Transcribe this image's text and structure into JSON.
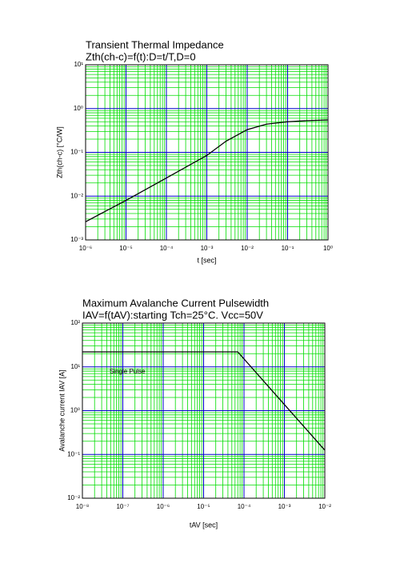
{
  "chart_data": [
    {
      "type": "line",
      "title": "Transient Thermal Impedance",
      "subtitle": "Zth(ch-c)=f(t):D=t/T,D=0",
      "x_label": "t [sec]",
      "y_label": "Zth(ch-c) [°C/W]",
      "log_x": true,
      "log_y": true,
      "grid": true,
      "minor_grid_color": "#00dd00",
      "major_grid_color": "#0000cc",
      "xlim": [
        1e-06,
        1
      ],
      "ylim": [
        0.001,
        10
      ],
      "xticks": [
        {
          "value": 1e-06,
          "label": "10⁻⁶"
        },
        {
          "value": 1e-05,
          "label": "10⁻⁵"
        },
        {
          "value": 0.0001,
          "label": "10⁻⁴"
        },
        {
          "value": 0.001,
          "label": "10⁻³"
        },
        {
          "value": 0.01,
          "label": "10⁻²"
        },
        {
          "value": 0.1,
          "label": "10⁻¹"
        },
        {
          "value": 1,
          "label": "10⁰"
        }
      ],
      "yticks": [
        {
          "value": 0.001,
          "label": "10⁻³"
        },
        {
          "value": 0.01,
          "label": "10⁻²"
        },
        {
          "value": 0.1,
          "label": "10⁻¹"
        },
        {
          "value": 1,
          "label": "10⁰"
        },
        {
          "value": 10,
          "label": "10¹"
        }
      ],
      "series": [
        {
          "color": "#000000",
          "x": [
            1e-06,
            1e-05,
            0.0001,
            0.001,
            0.003,
            0.01,
            0.03,
            0.1,
            0.3,
            1
          ],
          "values": [
            0.0026,
            0.008,
            0.026,
            0.085,
            0.18,
            0.33,
            0.44,
            0.5,
            0.53,
            0.55
          ]
        }
      ]
    },
    {
      "type": "line",
      "title": "Maximum Avalanche Current Pulsewidth",
      "subtitle": "IAV=f(tAV):starting Tch=25°C. Vcc=50V",
      "x_label": "tAV [sec]",
      "y_label": "Avalanche current IAV  [A]",
      "annotation": "Single Pulse",
      "log_x": true,
      "log_y": true,
      "grid": true,
      "minor_grid_color": "#00dd00",
      "major_grid_color": "#0000cc",
      "xlim": [
        1e-08,
        0.01
      ],
      "ylim": [
        0.01,
        100
      ],
      "xticks": [
        {
          "value": 1e-08,
          "label": "10⁻⁸"
        },
        {
          "value": 1e-07,
          "label": "10⁻⁷"
        },
        {
          "value": 1e-06,
          "label": "10⁻⁶"
        },
        {
          "value": 1e-05,
          "label": "10⁻⁵"
        },
        {
          "value": 0.0001,
          "label": "10⁻⁴"
        },
        {
          "value": 0.001,
          "label": "10⁻³"
        },
        {
          "value": 0.01,
          "label": "10⁻²"
        }
      ],
      "yticks": [
        {
          "value": 0.01,
          "label": "10⁻²"
        },
        {
          "value": 0.1,
          "label": "10⁻¹"
        },
        {
          "value": 1,
          "label": "10⁰"
        },
        {
          "value": 10,
          "label": "10¹"
        },
        {
          "value": 100,
          "label": "10²"
        }
      ],
      "series": [
        {
          "color": "#000000",
          "x": [
            1e-08,
            7e-05,
            0.01
          ],
          "values": [
            22,
            22,
            0.125
          ]
        }
      ]
    }
  ]
}
